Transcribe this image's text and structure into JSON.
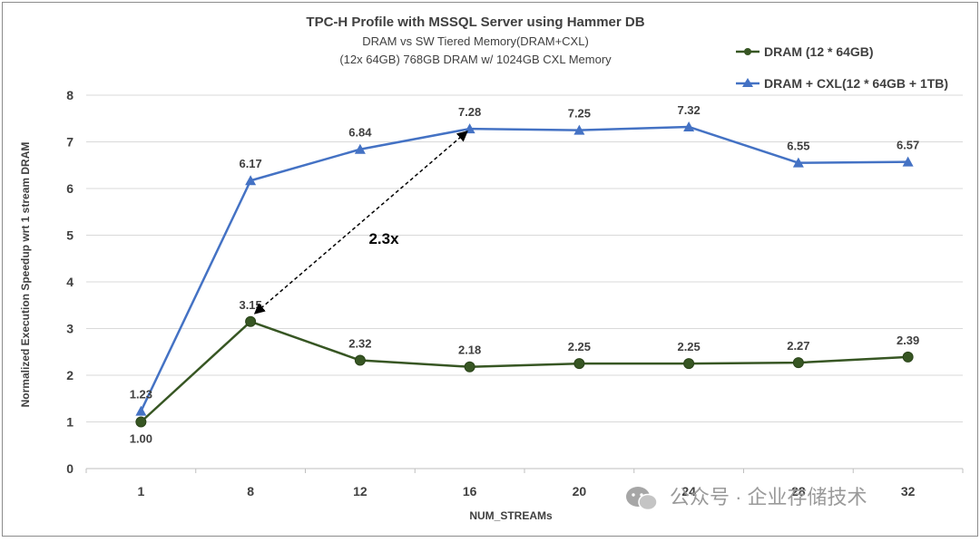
{
  "chart_data": {
    "type": "line",
    "title": "TPC-H Profile with MSSQL Server using Hammer DB",
    "subtitle_lines": [
      "DRAM vs SW Tiered Memory(DRAM+CXL)",
      "(12x 64GB) 768GB DRAM w/ 1024GB CXL Memory"
    ],
    "xlabel": "NUM_STREAMs",
    "ylabel": "Normalized Execution Speedup wrt 1 stream DRAM",
    "categories": [
      "1",
      "8",
      "12",
      "16",
      "20",
      "24",
      "28",
      "32"
    ],
    "yticks": [
      "0",
      "1",
      "2",
      "3",
      "4",
      "5",
      "6",
      "7",
      "8"
    ],
    "ylim": [
      0,
      8
    ],
    "grid": "horizontal",
    "legend_position": "top-right",
    "series": [
      {
        "name": "DRAM (12 * 64GB)",
        "color": "#375623",
        "marker": "circle",
        "values": [
          1.0,
          3.15,
          2.32,
          2.18,
          2.25,
          2.25,
          2.27,
          2.39
        ],
        "labels": [
          "1.00",
          "3.15",
          "2.32",
          "2.18",
          "2.25",
          "2.25",
          "2.27",
          "2.39"
        ]
      },
      {
        "name": "DRAM + CXL(12 * 64GB + 1TB)",
        "color": "#4472C4",
        "marker": "triangle",
        "values": [
          1.23,
          6.17,
          6.84,
          7.28,
          7.25,
          7.32,
          6.55,
          6.57
        ],
        "labels": [
          "1.23",
          "6.17",
          "6.84",
          "7.28",
          "7.25",
          "7.32",
          "6.55",
          "6.57"
        ]
      }
    ],
    "annotation": {
      "text": "2.3x",
      "from": {
        "category": "8",
        "value": 3.15
      },
      "to": {
        "category": "16",
        "value": 7.28
      }
    }
  },
  "watermark": {
    "icon": "wechat-icon",
    "text": "公众号 · 企业存储技术"
  }
}
